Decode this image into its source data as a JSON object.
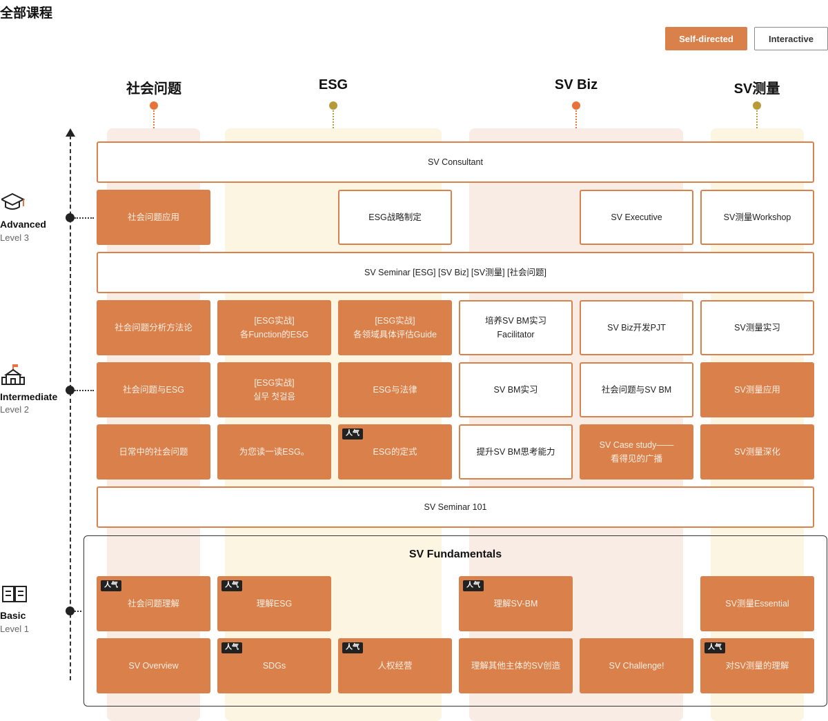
{
  "page_title": "全部课程",
  "legend": {
    "self_directed": "Self-directed",
    "interactive": "Interactive"
  },
  "categories": [
    "社会问题",
    "ESG",
    "SV Biz",
    "SV测量"
  ],
  "colors": {
    "accent": "#d9804b",
    "dot_orange": "#e8733a",
    "dot_gold": "#b89a3a"
  },
  "levels": {
    "advanced": {
      "name": "Advanced",
      "sub": "Level 3",
      "icon": "graduation-cap-icon"
    },
    "intermediate": {
      "name": "Intermediate",
      "sub": "Level 2",
      "icon": "school-building-icon"
    },
    "basic": {
      "name": "Basic",
      "sub": "Level 1",
      "icon": "open-book-icon"
    }
  },
  "popular_badge": "人气",
  "fundamentals_title": "SV Fundamentals",
  "courses": {
    "sv_consultant": "SV Consultant",
    "adv_social": "社会问题应用",
    "adv_esg": "ESG战略制定",
    "adv_exec": "SV Executive",
    "adv_measure": "SV测量Workshop",
    "sv_seminar": "SV Seminar [ESG] [SV Biz] [SV测量] [社会问题]",
    "r1": [
      "社会问题分析方法论",
      "[ESG实战]\n各Function的ESG",
      "[ESG实战]\n各领域具体评估Guide",
      "培养SV BM实习\nFacilitator",
      "SV Biz开发PJT",
      "SV测量实习"
    ],
    "r2": [
      "社会问题与ESG",
      "[ESG实战]\n실무 첫걸음",
      "ESG与法律",
      "SV BM实习",
      "社会问题与SV BM",
      "SV测量应用"
    ],
    "r3": [
      "日常中的社会问题",
      "为您读一读ESG。",
      "ESG的定式",
      "提升SV BM思考能力",
      "SV Case study——\n看得见的广播",
      "SV测量深化"
    ],
    "sv_seminar_101": "SV Seminar 101",
    "b1": [
      "社会问题理解",
      "理解ESG",
      "理解SV-BM",
      "SV测量Essential"
    ],
    "b2": [
      "SV Overview",
      "SDGs",
      "人权经营",
      "理解其他主体的SV创造",
      "SV Challenge!",
      "对SV测量的理解"
    ]
  }
}
